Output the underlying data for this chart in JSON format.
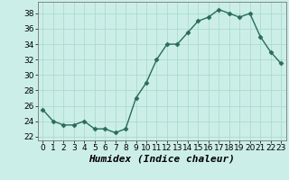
{
  "x": [
    0,
    1,
    2,
    3,
    4,
    5,
    6,
    7,
    8,
    9,
    10,
    11,
    12,
    13,
    14,
    15,
    16,
    17,
    18,
    19,
    20,
    21,
    22,
    23
  ],
  "y": [
    25.5,
    24.0,
    23.5,
    23.5,
    24.0,
    23.0,
    23.0,
    22.5,
    23.0,
    27.0,
    29.0,
    32.0,
    34.0,
    34.0,
    35.5,
    37.0,
    37.5,
    38.5,
    38.0,
    37.5,
    38.0,
    35.0,
    33.0,
    31.5
  ],
  "xlabel": "Humidex (Indice chaleur)",
  "ylim": [
    21.5,
    39.5
  ],
  "xlim": [
    -0.5,
    23.5
  ],
  "yticks": [
    22,
    24,
    26,
    28,
    30,
    32,
    34,
    36,
    38
  ],
  "xticks": [
    0,
    1,
    2,
    3,
    4,
    5,
    6,
    7,
    8,
    9,
    10,
    11,
    12,
    13,
    14,
    15,
    16,
    17,
    18,
    19,
    20,
    21,
    22,
    23
  ],
  "line_color": "#2a6b5a",
  "marker": "D",
  "marker_size": 2.5,
  "bg_color": "#cceee8",
  "grid_color": "#aaddcc",
  "fig_bg": "#cceee8",
  "xlabel_fontsize": 8,
  "tick_fontsize": 6.5,
  "line_width": 1.0
}
